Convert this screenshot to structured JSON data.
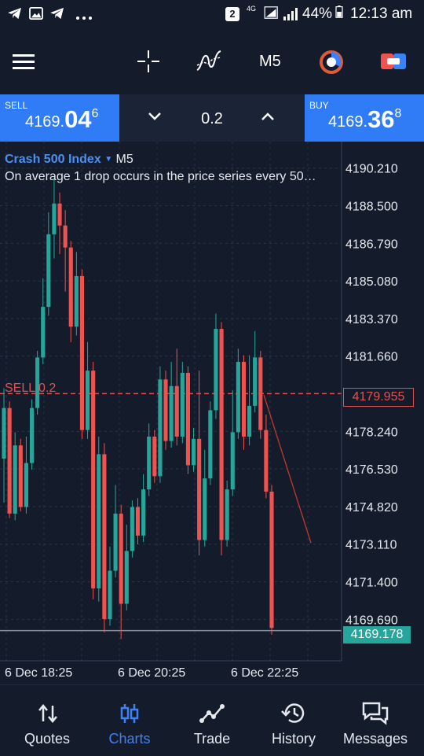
{
  "status_bar": {
    "sim_badge": "2",
    "network": "4G",
    "battery": "44%",
    "time": "12:13 am"
  },
  "toolbar": {
    "timeframe": "M5",
    "icons": [
      "menu-icon",
      "crosshair-icon",
      "indicators-icon",
      "timer-icon",
      "trade-toggle-icon"
    ]
  },
  "trade_bar": {
    "sell_label": "SELL",
    "sell_price_main": "4169.",
    "sell_price_big": "04",
    "sell_price_sup": "6",
    "buy_label": "BUY",
    "buy_price_main": "4169.",
    "buy_price_big": "36",
    "buy_price_sup": "8",
    "volume": "0.2"
  },
  "chart": {
    "symbol": "Crash 500 Index",
    "timeframe": "M5",
    "description": "On average 1 drop occurs in the price series every 50…",
    "position_label": "SELL 0.2",
    "position_price": "4179.955",
    "current_price": "4169.178",
    "y_ticks": [
      "4190.210",
      "4188.500",
      "4186.790",
      "4185.080",
      "4183.370",
      "4181.660",
      "4178.240",
      "4176.530",
      "4174.820",
      "4173.110",
      "4171.400",
      "4169.690"
    ],
    "x_ticks": [
      "6 Dec 18:25",
      "6 Dec 20:25",
      "6 Dec 22:25"
    ],
    "colors": {
      "up": "#26a69a",
      "down": "#ef5350",
      "position_line": "#e05252",
      "current_line": "#8a8f98"
    }
  },
  "chart_data": {
    "type": "candlestick",
    "x_labels": [
      "6 Dec 18:25",
      "6 Dec 20:25",
      "6 Dec 22:25"
    ],
    "ylim": [
      4168.7,
      4191.0
    ],
    "candles": [
      {
        "o": 4177.0,
        "h": 4180.2,
        "l": 4175.0,
        "c": 4179.3
      },
      {
        "o": 4179.3,
        "h": 4179.6,
        "l": 4174.3,
        "c": 4174.5
      },
      {
        "o": 4174.5,
        "h": 4178.2,
        "l": 4174.2,
        "c": 4177.6
      },
      {
        "o": 4177.6,
        "h": 4177.9,
        "l": 4174.6,
        "c": 4174.8
      },
      {
        "o": 4174.8,
        "h": 4178.0,
        "l": 4174.5,
        "c": 4176.8
      },
      {
        "o": 4176.8,
        "h": 4179.7,
        "l": 4176.5,
        "c": 4179.3
      },
      {
        "o": 4179.3,
        "h": 4181.9,
        "l": 4179.0,
        "c": 4181.6
      },
      {
        "o": 4181.6,
        "h": 4185.2,
        "l": 4181.3,
        "c": 4183.9
      },
      {
        "o": 4183.9,
        "h": 4188.2,
        "l": 4183.5,
        "c": 4187.2
      },
      {
        "o": 4187.2,
        "h": 4189.7,
        "l": 4186.1,
        "c": 4188.6
      },
      {
        "o": 4188.6,
        "h": 4189.1,
        "l": 4186.3,
        "c": 4187.6
      },
      {
        "o": 4187.6,
        "h": 4188.3,
        "l": 4184.6,
        "c": 4186.6
      },
      {
        "o": 4186.6,
        "h": 4186.9,
        "l": 4182.3,
        "c": 4183.0
      },
      {
        "o": 4183.0,
        "h": 4186.4,
        "l": 4182.6,
        "c": 4185.3
      },
      {
        "o": 4185.3,
        "h": 4185.6,
        "l": 4177.9,
        "c": 4178.3
      },
      {
        "o": 4178.3,
        "h": 4182.3,
        "l": 4177.9,
        "c": 4181.0
      },
      {
        "o": 4181.0,
        "h": 4181.4,
        "l": 4170.6,
        "c": 4171.1
      },
      {
        "o": 4171.1,
        "h": 4178.0,
        "l": 4170.5,
        "c": 4177.2
      },
      {
        "o": 4177.2,
        "h": 4177.7,
        "l": 4169.1,
        "c": 4169.7
      },
      {
        "o": 4169.7,
        "h": 4173.0,
        "l": 4169.4,
        "c": 4171.9
      },
      {
        "o": 4171.9,
        "h": 4175.8,
        "l": 4171.6,
        "c": 4174.5
      },
      {
        "o": 4174.5,
        "h": 4174.9,
        "l": 4168.8,
        "c": 4170.4
      },
      {
        "o": 4170.4,
        "h": 4174.0,
        "l": 4170.1,
        "c": 4172.8
      },
      {
        "o": 4172.8,
        "h": 4175.1,
        "l": 4172.5,
        "c": 4174.8
      },
      {
        "o": 4174.8,
        "h": 4175.2,
        "l": 4173.1,
        "c": 4173.5
      },
      {
        "o": 4173.5,
        "h": 4176.3,
        "l": 4173.2,
        "c": 4175.6
      },
      {
        "o": 4175.6,
        "h": 4178.6,
        "l": 4175.3,
        "c": 4178.0
      },
      {
        "o": 4178.0,
        "h": 4178.3,
        "l": 4175.9,
        "c": 4176.2
      },
      {
        "o": 4176.2,
        "h": 4181.2,
        "l": 4175.9,
        "c": 4180.6
      },
      {
        "o": 4180.6,
        "h": 4181.0,
        "l": 4177.4,
        "c": 4177.8
      },
      {
        "o": 4177.8,
        "h": 4181.4,
        "l": 4177.5,
        "c": 4180.3
      },
      {
        "o": 4180.3,
        "h": 4182.0,
        "l": 4177.6,
        "c": 4178.0
      },
      {
        "o": 4178.0,
        "h": 4181.4,
        "l": 4177.7,
        "c": 4180.9
      },
      {
        "o": 4180.9,
        "h": 4181.2,
        "l": 4176.3,
        "c": 4176.7
      },
      {
        "o": 4176.7,
        "h": 4178.4,
        "l": 4176.4,
        "c": 4177.9
      },
      {
        "o": 4177.9,
        "h": 4181.0,
        "l": 4172.6,
        "c": 4173.3
      },
      {
        "o": 4173.3,
        "h": 4177.4,
        "l": 4173.0,
        "c": 4176.1
      },
      {
        "o": 4176.1,
        "h": 4179.6,
        "l": 4175.8,
        "c": 4179.2
      },
      {
        "o": 4179.2,
        "h": 4183.6,
        "l": 4178.8,
        "c": 4182.9
      },
      {
        "o": 4182.9,
        "h": 4183.2,
        "l": 4172.6,
        "c": 4173.3
      },
      {
        "o": 4173.3,
        "h": 4176.0,
        "l": 4173.0,
        "c": 4175.6
      },
      {
        "o": 4175.6,
        "h": 4180.1,
        "l": 4175.3,
        "c": 4178.2
      },
      {
        "o": 4178.2,
        "h": 4182.0,
        "l": 4177.9,
        "c": 4181.4
      },
      {
        "o": 4181.4,
        "h": 4181.7,
        "l": 4177.4,
        "c": 4178.0
      },
      {
        "o": 4178.0,
        "h": 4181.7,
        "l": 4177.6,
        "c": 4179.4
      },
      {
        "o": 4179.4,
        "h": 4182.8,
        "l": 4179.1,
        "c": 4181.6
      },
      {
        "o": 4181.6,
        "h": 4181.9,
        "l": 4177.9,
        "c": 4178.3
      },
      {
        "o": 4178.3,
        "h": 4179.0,
        "l": 4175.2,
        "c": 4175.5
      },
      {
        "o": 4175.5,
        "h": 4175.8,
        "l": 4169.0,
        "c": 4169.3
      }
    ]
  },
  "bottom_nav": [
    {
      "label": "Quotes",
      "icon": "quotes-icon",
      "active": false
    },
    {
      "label": "Charts",
      "icon": "charts-icon",
      "active": true
    },
    {
      "label": "Trade",
      "icon": "trade-icon",
      "active": false
    },
    {
      "label": "History",
      "icon": "history-icon",
      "active": false
    },
    {
      "label": "Messages",
      "icon": "messages-icon",
      "active": false
    }
  ]
}
